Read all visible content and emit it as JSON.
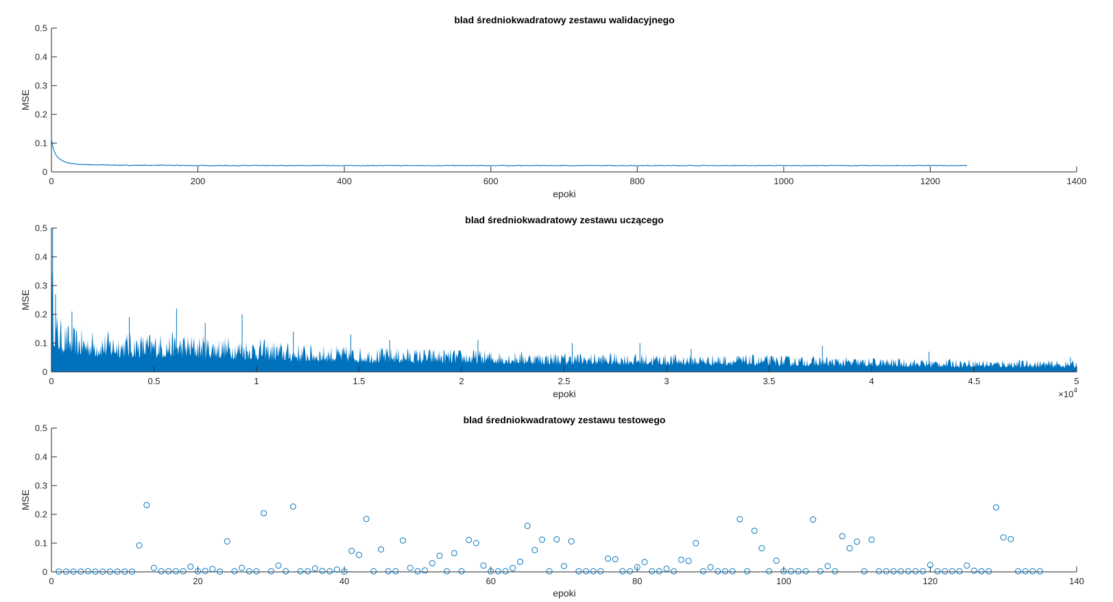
{
  "chart_data": [
    {
      "type": "line",
      "title": "blad średniokwadratowy zestawu walidacyjnego",
      "xlabel": "epoki",
      "ylabel": "MSE",
      "xlim": [
        0,
        1400
      ],
      "ylim": [
        0,
        0.5
      ],
      "xticks": [
        0,
        200,
        400,
        600,
        800,
        1000,
        1200,
        1400
      ],
      "xtick_labels": [
        "0",
        "200",
        "400",
        "600",
        "800",
        "1000",
        "1200",
        "1400"
      ],
      "yticks": [
        0,
        0.1,
        0.2,
        0.3,
        0.4,
        0.5
      ],
      "ytick_labels": [
        "0",
        "0.1",
        "0.2",
        "0.3",
        "0.4",
        "0.5"
      ],
      "color": "#0072BD",
      "series": [
        {
          "x": [
            0,
            2,
            5,
            8,
            12,
            17,
            23,
            30,
            40,
            55,
            75,
            100,
            150,
            200,
            300,
            400,
            500,
            600,
            700,
            800,
            900,
            1000,
            1100,
            1200,
            1250
          ],
          "values": [
            0.115,
            0.085,
            0.065,
            0.052,
            0.043,
            0.036,
            0.031,
            0.028,
            0.026,
            0.025,
            0.024,
            0.023,
            0.023,
            0.022,
            0.022,
            0.022,
            0.022,
            0.022,
            0.022,
            0.022,
            0.022,
            0.022,
            0.022,
            0.022,
            0.022
          ]
        }
      ]
    },
    {
      "type": "line",
      "title": "blad średniokwadratowy zestawu uczącego",
      "xlabel": "epoki",
      "ylabel": "MSE",
      "xlim": [
        0,
        50000
      ],
      "ylim": [
        0,
        0.5
      ],
      "xticks": [
        0,
        5000,
        10000,
        15000,
        20000,
        25000,
        30000,
        35000,
        40000,
        45000,
        50000
      ],
      "xtick_labels": [
        "0",
        "0.5",
        "1",
        "1.5",
        "2",
        "2.5",
        "3",
        "3.5",
        "4",
        "4.5",
        "5"
      ],
      "x_exponent_label": "×10",
      "x_exponent_power": "4",
      "yticks": [
        0,
        0.1,
        0.2,
        0.3,
        0.4,
        0.5
      ],
      "ytick_labels": [
        "0",
        "0.1",
        "0.2",
        "0.3",
        "0.4",
        "0.5"
      ],
      "color": "#0072BD",
      "series": [
        {
          "envelope_x": [
            0,
            100,
            300,
            1000,
            2000,
            4000,
            6000,
            8000,
            10000,
            12000,
            15000,
            20000,
            25000,
            30000,
            35000,
            40000,
            45000,
            50000
          ],
          "envelope_max": [
            0.5,
            0.27,
            0.2,
            0.16,
            0.15,
            0.14,
            0.14,
            0.13,
            0.12,
            0.1,
            0.09,
            0.08,
            0.07,
            0.065,
            0.06,
            0.05,
            0.045,
            0.04
          ],
          "peaks": [
            {
              "x": 60,
              "y": 0.5
            },
            {
              "x": 200,
              "y": 0.27
            },
            {
              "x": 1000,
              "y": 0.21
            },
            {
              "x": 3800,
              "y": 0.19
            },
            {
              "x": 6100,
              "y": 0.22
            },
            {
              "x": 7500,
              "y": 0.17
            },
            {
              "x": 9300,
              "y": 0.2
            },
            {
              "x": 11800,
              "y": 0.14
            },
            {
              "x": 14600,
              "y": 0.13
            },
            {
              "x": 16500,
              "y": 0.11
            },
            {
              "x": 20800,
              "y": 0.11
            },
            {
              "x": 25400,
              "y": 0.1
            },
            {
              "x": 28700,
              "y": 0.1
            },
            {
              "x": 31200,
              "y": 0.08
            },
            {
              "x": 37600,
              "y": 0.09
            },
            {
              "x": 42800,
              "y": 0.07
            },
            {
              "x": 49700,
              "y": 0.05
            }
          ]
        }
      ]
    },
    {
      "type": "scatter",
      "title": "blad średniokwadratowy zestawu testowego",
      "xlabel": "epoki",
      "ylabel": "MSE",
      "xlim": [
        0,
        140
      ],
      "ylim": [
        0,
        0.5
      ],
      "xticks": [
        0,
        20,
        40,
        60,
        80,
        100,
        120,
        140
      ],
      "xtick_labels": [
        "0",
        "20",
        "40",
        "60",
        "80",
        "100",
        "120",
        "140"
      ],
      "yticks": [
        0,
        0.1,
        0.2,
        0.3,
        0.4,
        0.5
      ],
      "ytick_labels": [
        "0",
        "0.1",
        "0.2",
        "0.3",
        "0.4",
        "0.5"
      ],
      "color": "#0072BD",
      "series": [
        {
          "x": [
            1,
            2,
            3,
            4,
            5,
            6,
            7,
            8,
            9,
            10,
            11,
            12,
            13,
            14,
            15,
            16,
            17,
            18,
            19,
            20,
            21,
            22,
            23,
            24,
            25,
            26,
            27,
            28,
            29,
            30,
            31,
            32,
            33,
            34,
            35,
            36,
            37,
            38,
            39,
            40,
            41,
            42,
            43,
            44,
            45,
            46,
            47,
            48,
            49,
            50,
            51,
            52,
            53,
            54,
            55,
            56,
            57,
            58,
            59,
            60,
            61,
            62,
            63,
            64,
            65,
            66,
            67,
            68,
            69,
            70,
            71,
            72,
            73,
            74,
            75,
            76,
            77,
            78,
            79,
            80,
            81,
            82,
            83,
            84,
            85,
            86,
            87,
            88,
            89,
            90,
            91,
            92,
            93,
            94,
            95,
            96,
            97,
            98,
            99,
            100,
            101,
            102,
            103,
            104,
            105,
            106,
            107,
            108,
            109,
            110,
            111,
            112,
            113,
            114,
            115,
            116,
            117,
            118,
            119,
            120,
            121,
            122,
            123,
            124,
            125,
            126,
            127,
            128,
            129,
            130,
            131,
            132,
            133,
            134,
            135
          ],
          "values": [
            0.001,
            0.001,
            0.001,
            0.001,
            0.002,
            0.001,
            0.001,
            0.001,
            0.001,
            0.001,
            0.001,
            0.092,
            0.232,
            0.014,
            0.002,
            0.002,
            0.002,
            0.002,
            0.018,
            0.002,
            0.003,
            0.01,
            0.001,
            0.106,
            0.002,
            0.014,
            0.002,
            0.002,
            0.204,
            0.002,
            0.022,
            0.002,
            0.227,
            0.002,
            0.002,
            0.012,
            0.003,
            0.002,
            0.008,
            0.001,
            0.073,
            0.059,
            0.184,
            0.002,
            0.078,
            0.002,
            0.002,
            0.109,
            0.014,
            0.002,
            0.005,
            0.03,
            0.056,
            0.002,
            0.065,
            0.002,
            0.111,
            0.1,
            0.022,
            0.002,
            0.002,
            0.002,
            0.013,
            0.035,
            0.16,
            0.076,
            0.112,
            0.002,
            0.113,
            0.02,
            0.106,
            0.002,
            0.002,
            0.002,
            0.002,
            0.046,
            0.044,
            0.002,
            0.002,
            0.016,
            0.034,
            0.002,
            0.002,
            0.011,
            0.002,
            0.042,
            0.038,
            0.1,
            0.002,
            0.016,
            0.002,
            0.002,
            0.002,
            0.183,
            0.002,
            0.143,
            0.082,
            0.002,
            0.039,
            0.002,
            0.002,
            0.002,
            0.002,
            0.182,
            0.002,
            0.02,
            0.002,
            0.124,
            0.082,
            0.105,
            0.002,
            0.112,
            0.002,
            0.002,
            0.002,
            0.002,
            0.002,
            0.002,
            0.002,
            0.024,
            0.002,
            0.002,
            0.002,
            0.002,
            0.022,
            0.004,
            0.002,
            0.002,
            0.224,
            0.12,
            0.114,
            0.002,
            0.002,
            0.002,
            0.002
          ]
        }
      ]
    }
  ]
}
